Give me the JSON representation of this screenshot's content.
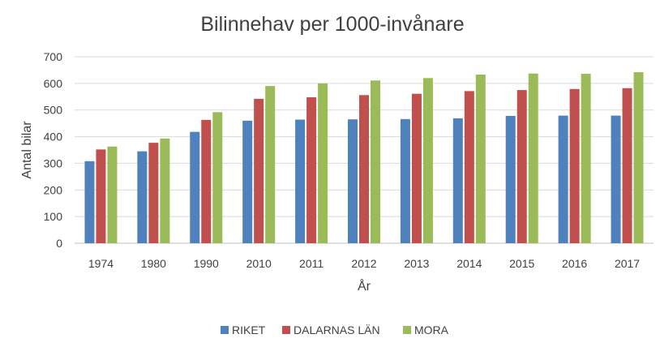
{
  "chart_data": {
    "type": "bar",
    "title": "Bilinnehav per 1000-invånare",
    "xlabel": "År",
    "ylabel": "Antal bilar",
    "categories": [
      "1974",
      "1980",
      "1990",
      "2010",
      "2011",
      "2012",
      "2013",
      "2014",
      "2015",
      "2016",
      "2017"
    ],
    "ylim": [
      0,
      700
    ],
    "yticks": [
      0,
      100,
      200,
      300,
      400,
      500,
      600,
      700
    ],
    "grid": true,
    "legend_position": "bottom",
    "series": [
      {
        "name": "RIKET",
        "color": "#4f81bd",
        "values": [
          308,
          345,
          418,
          460,
          464,
          465,
          466,
          469,
          478,
          479,
          479
        ]
      },
      {
        "name": "DALARNAS LÄN",
        "color": "#c0504d",
        "values": [
          352,
          377,
          463,
          542,
          548,
          556,
          561,
          571,
          575,
          579,
          582
        ]
      },
      {
        "name": "MORA",
        "color": "#9bbb59",
        "values": [
          363,
          393,
          492,
          590,
          600,
          611,
          620,
          633,
          637,
          636,
          642
        ]
      }
    ]
  }
}
